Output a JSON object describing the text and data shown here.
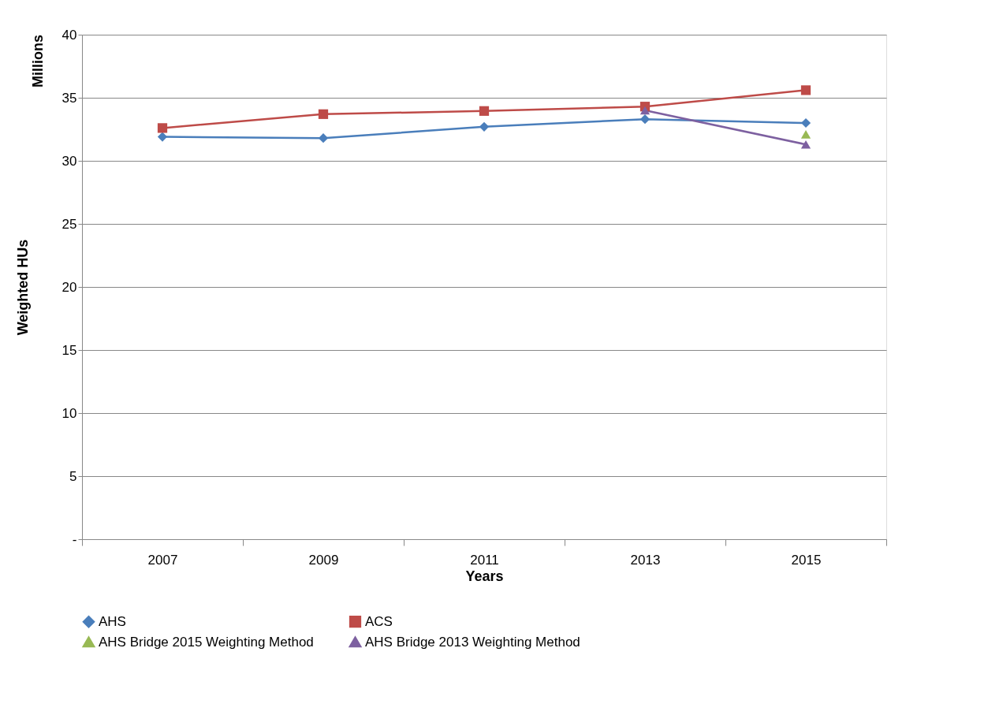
{
  "chart_data": {
    "type": "line",
    "xlabel": "Years",
    "ylabel": "Weighted HUs",
    "annotations": [
      "Millions"
    ],
    "categories": [
      "2007",
      "2009",
      "2011",
      "2013",
      "2015"
    ],
    "series": [
      {
        "name": "AHS",
        "color": "#4a7ebb",
        "marker": "diamond",
        "values": [
          31.9,
          31.8,
          32.7,
          33.3,
          33.0
        ]
      },
      {
        "name": "ACS",
        "color": "#be4b48",
        "marker": "square",
        "values": [
          32.6,
          33.7,
          33.95,
          34.3,
          35.6
        ]
      },
      {
        "name": "AHS Bridge 2015 Weighting Method",
        "color": "#98b954",
        "marker": "triangle",
        "values": [
          null,
          null,
          null,
          null,
          32.1
        ]
      },
      {
        "name": "AHS Bridge 2013 Weighting Method",
        "color": "#7d60a0",
        "marker": "triangle",
        "values": [
          null,
          null,
          null,
          34.0,
          31.3
        ]
      }
    ],
    "ylim": [
      0,
      40
    ],
    "yticks": [
      {
        "value": 0,
        "label": "-"
      },
      5,
      10,
      15,
      20,
      25,
      30,
      35,
      40
    ],
    "grid": "y",
    "legend": "bottom"
  }
}
